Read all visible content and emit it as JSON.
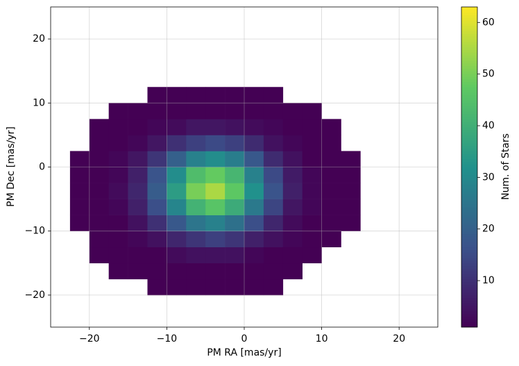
{
  "chart_data": {
    "type": "hist2d",
    "x_label": "PM RA [mas/yr]",
    "y_label": "PM Dec [mas/yr]",
    "colorbar_label": "Num. of Stars",
    "colormap": "viridis",
    "clim": [
      1,
      63
    ],
    "cbar_ticks": [
      10,
      20,
      30,
      40,
      50,
      60
    ],
    "grid": true,
    "xlim": [
      -25,
      25
    ],
    "ylim": [
      -25,
      25
    ],
    "xticks": [
      {
        "value": -20,
        "label": "−20"
      },
      {
        "value": -10,
        "label": "−10"
      },
      0,
      10,
      20
    ],
    "yticks": [
      {
        "value": -20,
        "label": "−20"
      },
      {
        "value": -10,
        "label": "−10"
      },
      0,
      10,
      20
    ],
    "x_bins": [
      -25,
      -22.5,
      -20,
      -17.5,
      -15,
      -12.5,
      -10,
      -7.5,
      -5,
      -2.5,
      0,
      2.5,
      5,
      7.5,
      10,
      12.5,
      15,
      17.5,
      20,
      22.5,
      25
    ],
    "y_bins": [
      -25,
      -22.5,
      -20,
      -17.5,
      -15,
      -12.5,
      -10,
      -7.5,
      -5,
      -2.5,
      0,
      2.5,
      5,
      7.5,
      10,
      12.5,
      15,
      17.5,
      20,
      22.5,
      25
    ],
    "counts": [
      [
        null,
        null,
        null,
        null,
        null,
        null,
        null,
        null,
        null,
        null,
        null,
        null,
        null,
        null,
        null,
        null,
        null,
        null,
        null,
        null
      ],
      [
        null,
        null,
        null,
        null,
        null,
        null,
        null,
        null,
        null,
        null,
        null,
        null,
        null,
        null,
        null,
        null,
        null,
        null,
        null,
        null
      ],
      [
        null,
        null,
        null,
        null,
        null,
        1,
        1,
        1,
        1,
        1,
        1,
        1,
        null,
        null,
        null,
        null,
        null,
        null,
        null,
        null
      ],
      [
        null,
        null,
        null,
        1,
        1,
        1,
        1,
        1,
        1,
        1,
        1,
        1,
        1,
        null,
        null,
        null,
        null,
        null,
        null,
        null
      ],
      [
        null,
        null,
        1,
        1,
        1,
        1,
        3,
        4,
        4,
        4,
        2,
        1,
        1,
        1,
        null,
        null,
        null,
        null,
        null,
        null
      ],
      [
        null,
        null,
        1,
        1,
        2,
        4,
        8,
        11,
        13,
        11,
        7,
        4,
        2,
        1,
        1,
        null,
        null,
        null,
        null,
        null
      ],
      [
        null,
        1,
        1,
        1,
        4,
        10,
        18,
        25,
        28,
        24,
        16,
        8,
        3,
        1,
        1,
        1,
        null,
        null,
        null,
        null
      ],
      [
        null,
        1,
        1,
        2,
        7,
        16,
        29,
        41,
        46,
        39,
        26,
        14,
        5,
        2,
        1,
        1,
        null,
        null,
        null,
        null
      ],
      [
        null,
        1,
        1,
        3,
        8,
        19,
        35,
        50,
        55,
        47,
        32,
        17,
        7,
        2,
        1,
        1,
        null,
        null,
        null,
        null
      ],
      [
        null,
        1,
        1,
        2,
        7,
        17,
        31,
        44,
        48,
        42,
        28,
        15,
        6,
        2,
        1,
        1,
        null,
        null,
        null,
        null
      ],
      [
        null,
        1,
        1,
        2,
        5,
        11,
        20,
        28,
        31,
        27,
        18,
        9,
        4,
        1,
        1,
        1,
        null,
        null,
        null,
        null
      ],
      [
        null,
        null,
        1,
        1,
        2,
        5,
        10,
        13,
        15,
        13,
        9,
        4,
        2,
        1,
        1,
        null,
        null,
        null,
        null,
        null
      ],
      [
        null,
        null,
        1,
        1,
        1,
        2,
        3,
        5,
        5,
        4,
        3,
        2,
        1,
        1,
        1,
        null,
        null,
        null,
        null,
        null
      ],
      [
        null,
        null,
        null,
        1,
        1,
        1,
        1,
        1,
        1,
        1,
        1,
        1,
        1,
        1,
        null,
        null,
        null,
        null,
        null,
        null
      ],
      [
        null,
        null,
        null,
        null,
        null,
        1,
        1,
        1,
        1,
        1,
        1,
        1,
        null,
        null,
        null,
        null,
        null,
        null,
        null,
        null
      ],
      [
        null,
        null,
        null,
        null,
        null,
        null,
        null,
        null,
        null,
        null,
        null,
        null,
        null,
        null,
        null,
        null,
        null,
        null,
        null,
        null
      ],
      [
        null,
        null,
        null,
        null,
        null,
        null,
        null,
        null,
        null,
        null,
        null,
        null,
        null,
        null,
        null,
        null,
        null,
        null,
        null,
        null
      ],
      [
        null,
        null,
        null,
        null,
        null,
        null,
        null,
        null,
        null,
        null,
        null,
        null,
        null,
        null,
        null,
        null,
        null,
        null,
        null,
        null
      ],
      [
        null,
        null,
        null,
        null,
        null,
        null,
        null,
        null,
        null,
        null,
        null,
        null,
        null,
        null,
        null,
        null,
        null,
        null,
        null,
        null
      ],
      [
        null,
        null,
        null,
        null,
        null,
        null,
        null,
        null,
        null,
        null,
        null,
        null,
        null,
        null,
        null,
        null,
        null,
        null,
        null,
        null
      ]
    ]
  }
}
